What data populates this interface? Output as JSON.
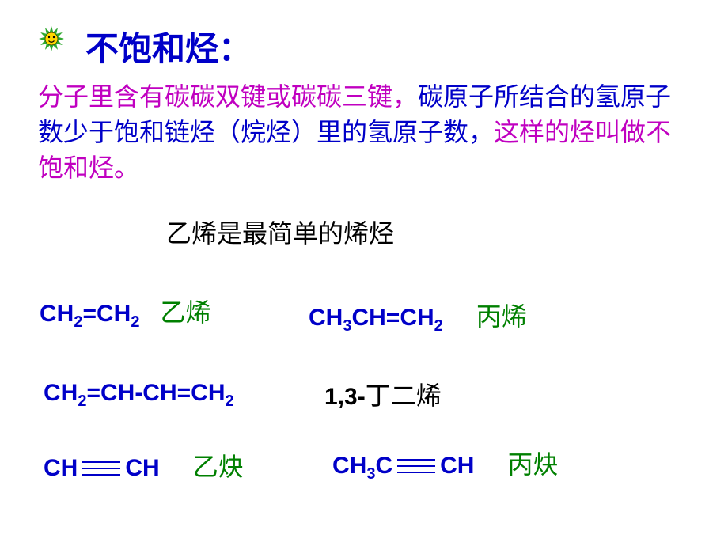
{
  "icon": {
    "petal_color": "#2fa82f",
    "center_fill": "#ffd700",
    "face_stroke": "#000000"
  },
  "title": "不饱和烃：",
  "definition": {
    "part1": "分子里含有碳碳双键或碳碳三键，",
    "part2": "碳原子所结合的氢原子数少于饱和链烃（烷烃）里的氢原子数，",
    "part3": "这样的烃叫做不饱和烃。"
  },
  "subtitle": "乙烯是最简单的烯烃",
  "colors": {
    "title_color": "#0000c8",
    "formula_color": "#0000c8",
    "bond_color": "#0000c8",
    "magenta": "#c000c0",
    "green": "#008000",
    "black": "#000000",
    "background": "#ffffff"
  },
  "compounds": {
    "ethylene": {
      "formula_html": "CH<sub>2</sub>=CH<sub>2</sub>",
      "name": "乙烯"
    },
    "propylene": {
      "formula_html": "CH<sub>3</sub>CH=CH<sub>2</sub>",
      "name": "丙烯"
    },
    "butadiene": {
      "formula_html": "CH<sub>2</sub>=CH-CH=CH<sub>2</sub>",
      "prefix": "1,3-",
      "name_cn": "丁二烯"
    },
    "acetylene": {
      "left": "CH",
      "right": "CH",
      "name": "乙炔"
    },
    "propyne": {
      "left_html": "CH<sub>3</sub>C",
      "right": "CH",
      "name": "丙炔"
    }
  }
}
